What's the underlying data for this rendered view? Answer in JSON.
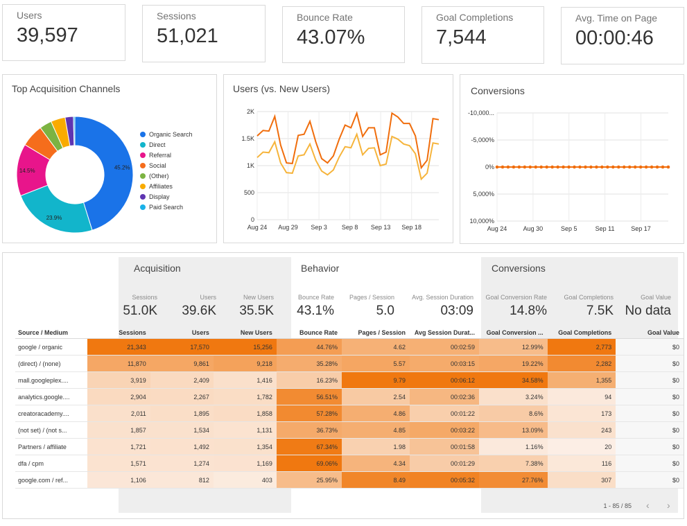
{
  "kpis": [
    {
      "label": "Users",
      "value": "39,597"
    },
    {
      "label": "Sessions",
      "value": "51,021"
    },
    {
      "label": "Bounce Rate",
      "value": "43.07%"
    },
    {
      "label": "Goal Completions",
      "value": "7,544"
    },
    {
      "label": "Avg. Time on Page",
      "value": "00:00:46"
    }
  ],
  "charts": {
    "donut_title": "Top Acquisition Channels",
    "line_title": "Users (vs. New Users)",
    "conv_title": "Conversions"
  },
  "chart_data": [
    {
      "type": "pie",
      "title": "Top Acquisition Channels",
      "categories": [
        "Organic Search",
        "Direct",
        "Referral",
        "Social",
        "(Other)",
        "Affiliates",
        "Display",
        "Paid Search"
      ],
      "values": [
        45.2,
        23.9,
        14.5,
        6.3,
        3.4,
        4.0,
        2.3,
        0.4
      ],
      "data_labels": [
        "45.2%",
        "23.9%",
        "14.5%",
        "",
        "",
        "",
        "",
        ""
      ],
      "colors": [
        "#1a73e8",
        "#12b5cb",
        "#e8158b",
        "#f56d1c",
        "#7cb342",
        "#f9ab00",
        "#5e35b1",
        "#1ab1e8"
      ],
      "legend": "right"
    },
    {
      "type": "line",
      "title": "Users (vs. New Users)",
      "x_ticks": [
        "Aug 24",
        "Aug 29",
        "Sep 3",
        "Sep 8",
        "Sep 13",
        "Sep 18"
      ],
      "y_ticks": [
        "0",
        "500",
        "1K",
        "1.5K",
        "2K"
      ],
      "ylim": [
        0,
        2000
      ],
      "series": [
        {
          "values": [
            1550,
            1650,
            1640,
            1910,
            1380,
            1050,
            1040,
            1560,
            1580,
            1820,
            1440,
            1130,
            1050,
            1180,
            1490,
            1750,
            1700,
            1970,
            1540,
            1700,
            1700,
            1200,
            1250,
            1970,
            1900,
            1780,
            1780,
            1550,
            960,
            1100,
            1870,
            1850
          ],
          "color": "#f06d0c"
        },
        {
          "values": [
            1150,
            1250,
            1240,
            1440,
            1050,
            870,
            860,
            1180,
            1200,
            1400,
            1100,
            900,
            830,
            920,
            1160,
            1350,
            1330,
            1580,
            1200,
            1320,
            1330,
            1000,
            1030,
            1540,
            1490,
            1400,
            1370,
            1220,
            750,
            860,
            1420,
            1400
          ],
          "color": "#f6b43b"
        }
      ],
      "grid": true
    },
    {
      "type": "line",
      "title": "Conversions",
      "x_ticks": [
        "Aug 24",
        "Aug 30",
        "Sep 5",
        "Sep 11",
        "Sep 17"
      ],
      "y_ticks": [
        "10,000%",
        "5,000%",
        "0%",
        "-5,000%",
        "-10,000..."
      ],
      "ylim": [
        -10000,
        10000
      ],
      "series": [
        {
          "values": [
            0,
            0,
            0,
            0,
            0,
            0,
            0,
            0,
            0,
            0,
            0,
            0,
            0,
            0,
            0,
            0,
            0,
            0,
            0,
            0,
            0,
            0,
            0,
            0,
            0,
            0,
            0,
            0,
            0,
            0,
            0,
            0
          ],
          "color": "#f06d0c"
        }
      ],
      "grid": true
    }
  ],
  "table": {
    "sections": {
      "acq": "Acquisition",
      "beh": "Behavior",
      "conv": "Conversions"
    },
    "summary": [
      {
        "label": "Sessions",
        "value": "51.0K"
      },
      {
        "label": "Users",
        "value": "39.6K"
      },
      {
        "label": "New Users",
        "value": "35.5K"
      },
      {
        "label": "Bounce Rate",
        "value": "43.1%"
      },
      {
        "label": "Pages / Session",
        "value": "5.0"
      },
      {
        "label": "Avg. Session Duration",
        "value": "03:09"
      },
      {
        "label": "Goal Conversion Rate",
        "value": "14.8%"
      },
      {
        "label": "Goal Completions",
        "value": "7.5K"
      },
      {
        "label": "Goal Value",
        "value": "No data"
      }
    ],
    "headers": [
      "Source / Medium",
      "Sessions",
      "Users",
      "New Users",
      "Bounce Rate",
      "Pages / Session",
      "Avg Session Durat...",
      "Goal Conversion ...",
      "Goal Completions",
      "Goal Value"
    ],
    "rows": [
      [
        "google / organic",
        "21,343",
        "17,570",
        "15,256",
        "44.76%",
        "4.62",
        "00:02:59",
        "12.99%",
        "2,773",
        "$0"
      ],
      [
        "(direct) / (none)",
        "11,870",
        "9,861",
        "9,218",
        "35.28%",
        "5.57",
        "00:03:15",
        "19.22%",
        "2,282",
        "$0"
      ],
      [
        "mall.googleplex....",
        "3,919",
        "2,409",
        "1,416",
        "16.23%",
        "9.79",
        "00:06:12",
        "34.58%",
        "1,355",
        "$0"
      ],
      [
        "analytics.google....",
        "2,904",
        "2,267",
        "1,782",
        "56.51%",
        "2.54",
        "00:02:36",
        "3.24%",
        "94",
        "$0"
      ],
      [
        "creatoracademy....",
        "2,011",
        "1,895",
        "1,858",
        "57.28%",
        "4.86",
        "00:01:22",
        "8.6%",
        "173",
        "$0"
      ],
      [
        "(not set) / (not s...",
        "1,857",
        "1,534",
        "1,131",
        "36.73%",
        "4.85",
        "00:03:22",
        "13.09%",
        "243",
        "$0"
      ],
      [
        "Partners / affiliate",
        "1,721",
        "1,492",
        "1,354",
        "67.34%",
        "1.98",
        "00:01:58",
        "1.16%",
        "20",
        "$0"
      ],
      [
        "dfa / cpm",
        "1,571",
        "1,274",
        "1,169",
        "69.06%",
        "4.34",
        "00:01:29",
        "7.38%",
        "116",
        "$0"
      ],
      [
        "google.com / ref...",
        "1,106",
        "812",
        "403",
        "25.95%",
        "8.49",
        "00:05:32",
        "27.76%",
        "307",
        "$0"
      ]
    ],
    "pager": "1 - 85 / 85",
    "prev_icon": "chevron-left-icon",
    "next_icon": "chevron-right-icon"
  }
}
